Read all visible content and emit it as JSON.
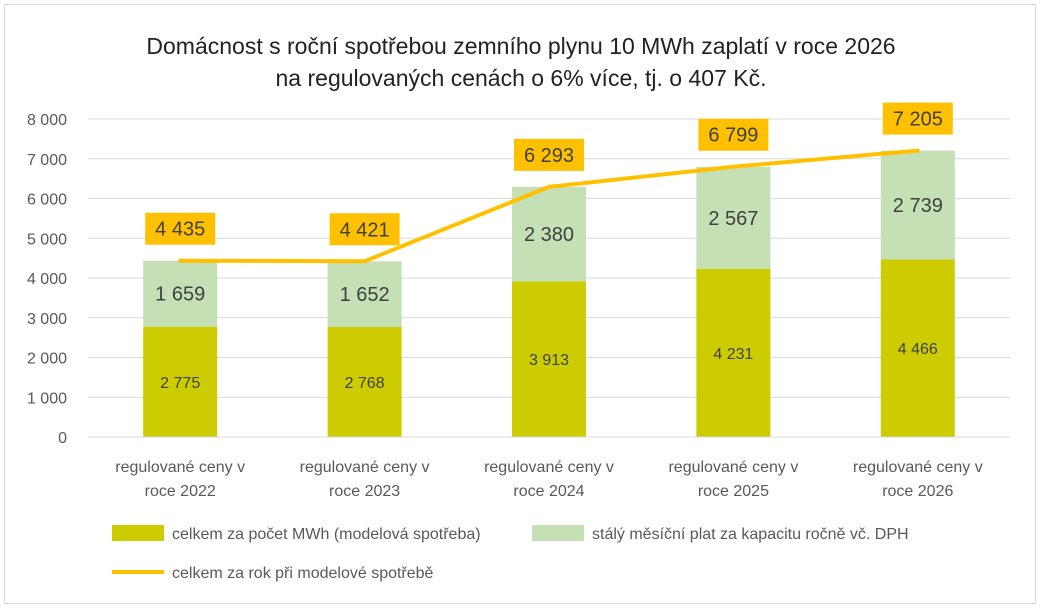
{
  "chart_data": {
    "type": "bar",
    "stacked": true,
    "title_line1": "Domácnost s roční spotřebou zemního plynu 10 MWh zaplatí v roce 2026",
    "title_line2": "na regulovaných cenách o 6% více, tj. o 407 Kč.",
    "categories": [
      [
        "regulované ceny v",
        "roce 2022"
      ],
      [
        "regulované ceny v",
        "roce 2023"
      ],
      [
        "regulované ceny v",
        "roce 2024"
      ],
      [
        "regulované ceny v",
        "roce 2025"
      ],
      [
        "regulované ceny v",
        "roce 2026"
      ]
    ],
    "ylim": [
      0,
      8000
    ],
    "yticks": [
      0,
      1000,
      2000,
      3000,
      4000,
      5000,
      6000,
      7000,
      8000
    ],
    "ytick_labels": [
      "0",
      "1 000",
      "2 000",
      "3 000",
      "4 000",
      "5 000",
      "6 000",
      "7 000",
      "8 000"
    ],
    "gridlines": true,
    "series": [
      {
        "name": "celkem za počet MWh (modelová spotřeba)",
        "type": "bar",
        "color": "#cccc00",
        "values": [
          2775,
          2768,
          3913,
          4231,
          4466
        ],
        "labels": [
          "2 775",
          "2 768",
          "3 913",
          "4 231",
          "4 466"
        ]
      },
      {
        "name": "stálý měsíční plat za kapacitu ročně vč. DPH",
        "type": "bar",
        "color": "#c5e0b4",
        "values": [
          1659,
          1652,
          2380,
          2567,
          2739
        ],
        "labels": [
          "1 659",
          "1 652",
          "2 380",
          "2 567",
          "2 739"
        ]
      },
      {
        "name": "celkem za rok při modelové spotřebě",
        "type": "line",
        "color": "#ffc000",
        "values": [
          4435,
          4421,
          6293,
          6799,
          7205
        ],
        "labels": [
          "4 435",
          "4 421",
          "6 293",
          "6 799",
          "7 205"
        ]
      }
    ],
    "legend_position": "bottom"
  }
}
